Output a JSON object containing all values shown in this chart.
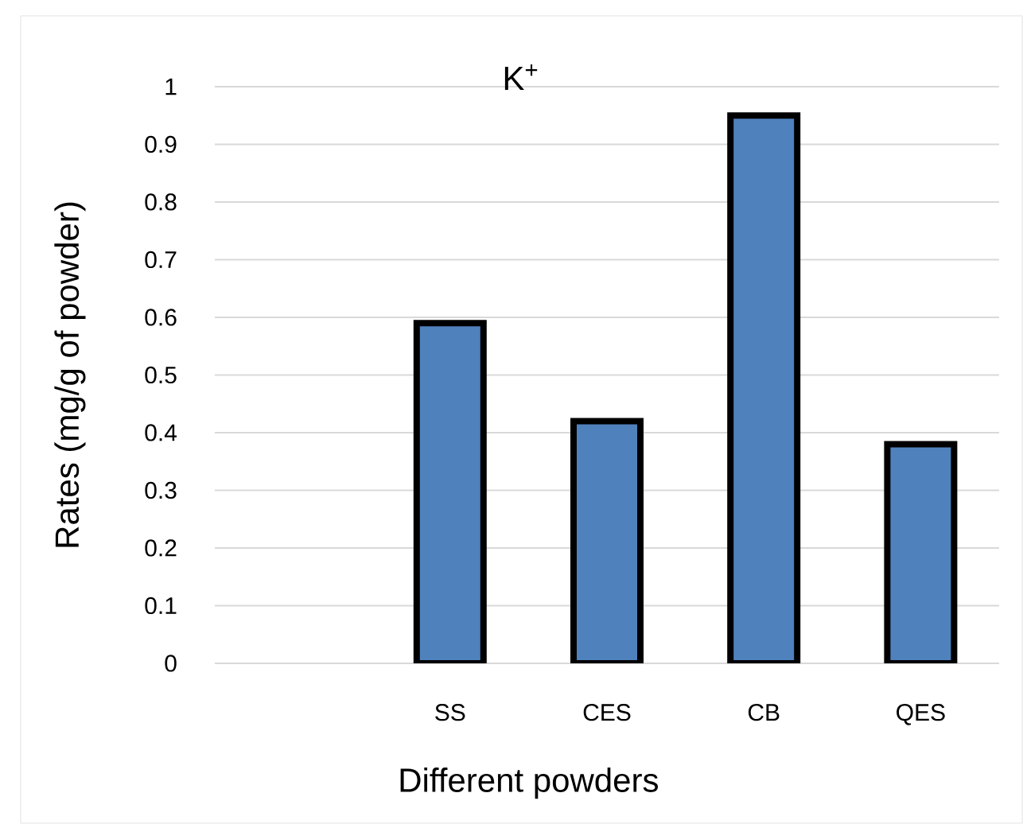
{
  "chart_data": {
    "type": "bar",
    "title": "K$^{+}$",
    "xlabel": "Different powders",
    "ylabel": "Rates (mg/g of powder)",
    "categories": [
      null,
      "SS",
      "CES",
      "CB",
      "QES"
    ],
    "values": [
      null,
      0.59,
      0.42,
      0.95,
      0.38
    ],
    "color": "#4f81bd",
    "ylim": [
      0,
      1
    ],
    "yticks": [
      0,
      0.1,
      0.2,
      0.3,
      0.4,
      0.5,
      0.6,
      0.7,
      0.8,
      0.9,
      1
    ],
    "grid": "y"
  }
}
